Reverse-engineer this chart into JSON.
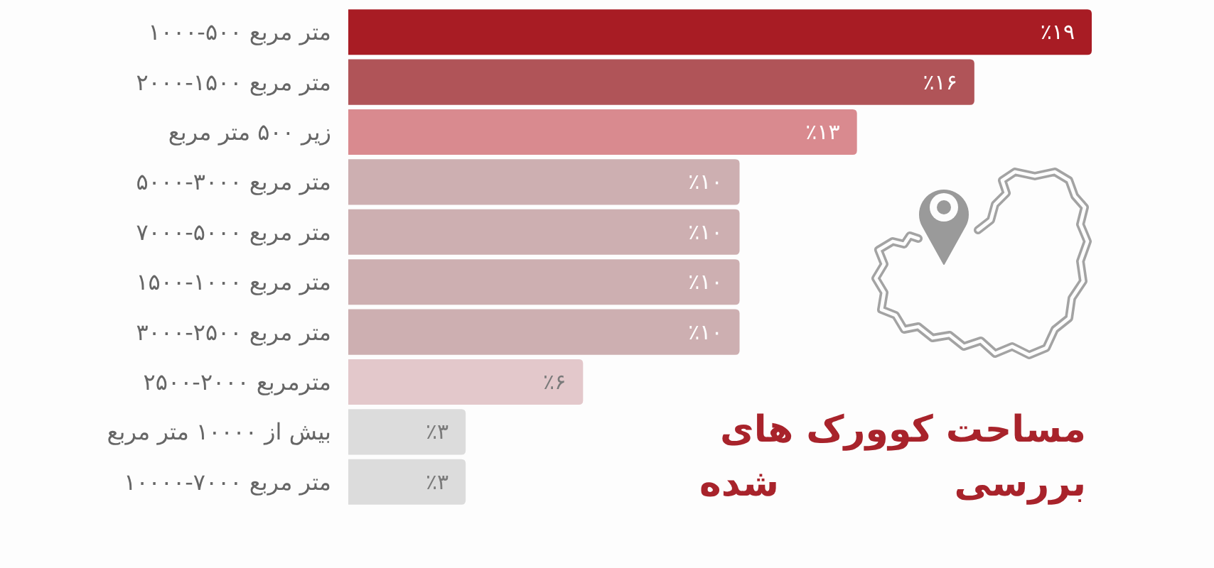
{
  "chart_data": {
    "type": "bar",
    "orientation": "horizontal",
    "title": "مساحت کوورک های بررسی شده",
    "categories": [
      "۱۰۰۰-۵۰۰ متر مربع",
      "۲۰۰۰-۱۵۰۰ متر مربع",
      "زیر ۵۰۰ متر مربع",
      "۵۰۰۰-۳۰۰۰ متر مربع",
      "۷۰۰۰-۵۰۰۰ متر مربع",
      "۱۵۰۰-۱۰۰۰ متر مربع",
      "۳۰۰۰-۲۵۰۰ متر مربع",
      "۲۵۰۰-۲۰۰۰ مترمربع",
      "بیش از ۱۰۰۰۰ متر مربع",
      "۱۰۰۰۰-۷۰۰۰ متر مربع"
    ],
    "values": [
      19,
      16,
      13,
      10,
      10,
      10,
      10,
      6,
      3,
      3
    ],
    "colors": [
      "#a81c24",
      "#b05458",
      "#d98a8f",
      "#cdafb1",
      "#cdafb1",
      "#cdafb1",
      "#cdafb1",
      "#e3c8cb",
      "#dcdcdc",
      "#dcdcdc"
    ],
    "value_labels": [
      "٪۱۹",
      "٪۱۶",
      "٪۱۳",
      "٪۱۰",
      "٪۱۰",
      "٪۱۰",
      "٪۱۰",
      "٪۶",
      "٪۳",
      "٪۳"
    ]
  }
}
